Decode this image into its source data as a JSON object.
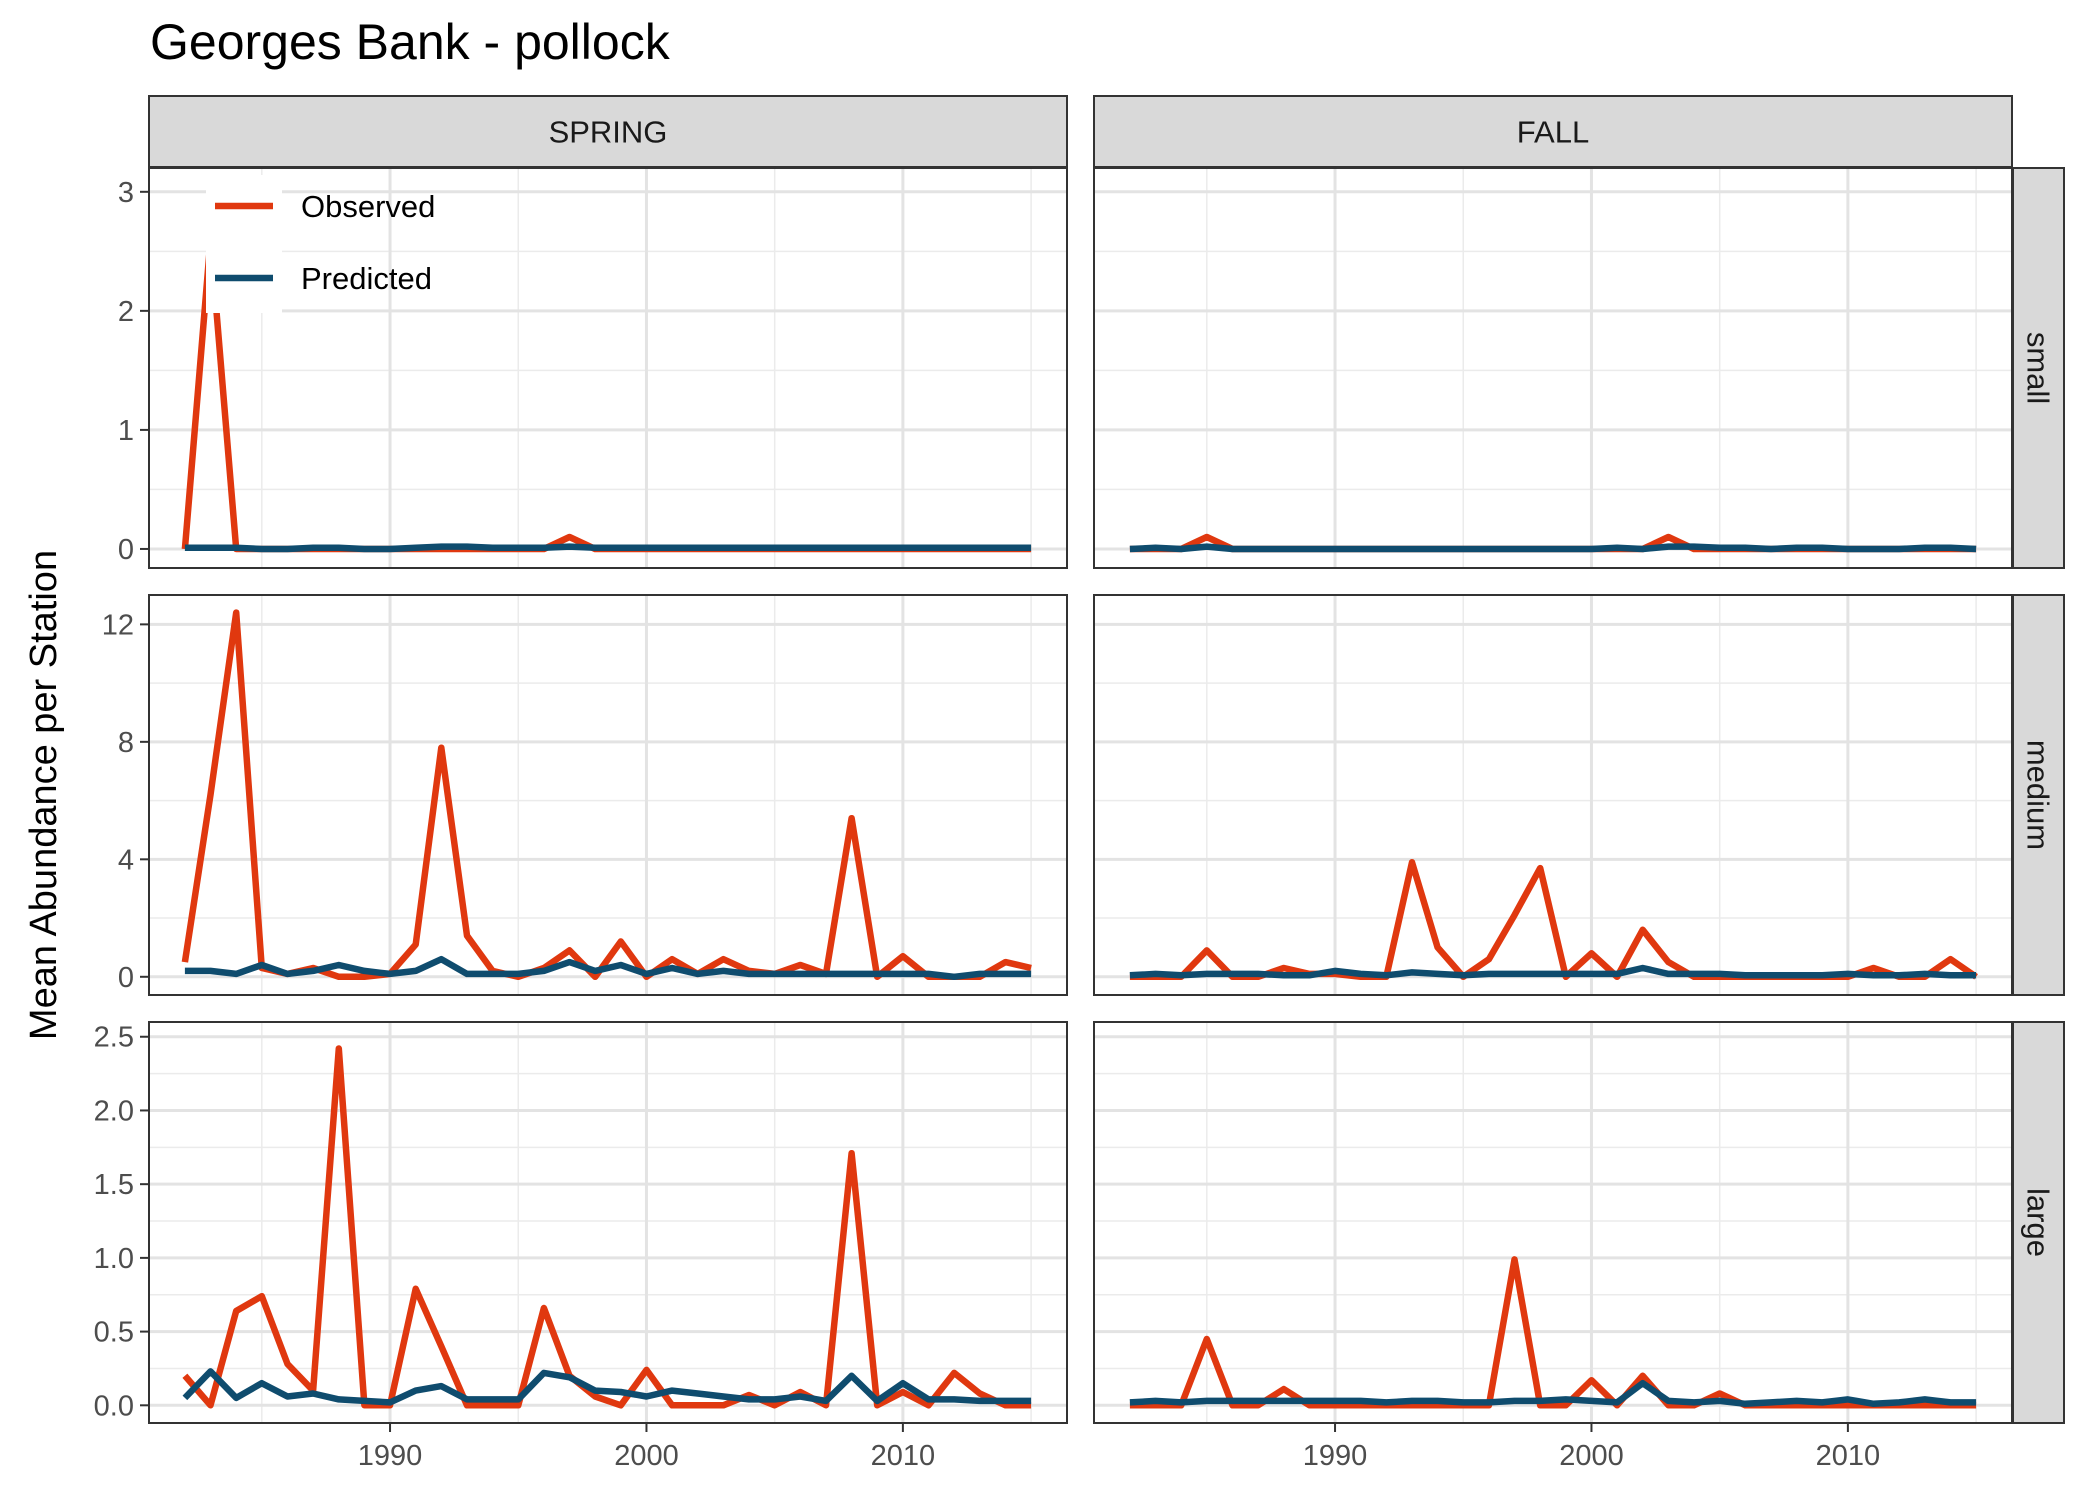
{
  "chart_data": {
    "type": "line",
    "title": "Georges Bank - pollock",
    "ylabel": "Mean Abundance per Station",
    "xlabel": "",
    "grid": true,
    "legend_position": "top-left inside first panel",
    "colors": {
      "Observed": "#e0380f",
      "Predicted": "#0f4c6e"
    },
    "columns": [
      "SPRING",
      "FALL"
    ],
    "rows": [
      "small",
      "medium",
      "large"
    ],
    "xlim": [
      1980.6,
      2016.4
    ],
    "x_ticks": [
      1990,
      2000,
      2010
    ],
    "x_tick_labels": [
      "1990",
      "2000",
      "2010"
    ],
    "x": [
      1982,
      1983,
      1984,
      1985,
      1986,
      1987,
      1988,
      1989,
      1990,
      1991,
      1992,
      1993,
      1994,
      1995,
      1996,
      1997,
      1998,
      1999,
      2000,
      2001,
      2002,
      2003,
      2004,
      2005,
      2006,
      2007,
      2008,
      2009,
      2010,
      2011,
      2012,
      2013,
      2014,
      2015
    ],
    "row_axes": {
      "small": {
        "ylim": [
          -0.16,
          3.2
        ],
        "ticks": [
          0,
          1,
          2,
          3
        ],
        "tick_labels": [
          "0",
          "1",
          "2",
          "3"
        ]
      },
      "medium": {
        "ylim": [
          -0.62,
          13.0
        ],
        "ticks": [
          0,
          4,
          8,
          12
        ],
        "tick_labels": [
          "0",
          "4",
          "8",
          "12"
        ]
      },
      "large": {
        "ylim": [
          -0.12,
          2.6
        ],
        "ticks": [
          0,
          0.5,
          1.0,
          1.5,
          2.0,
          2.5
        ],
        "tick_labels": [
          "0.0",
          "0.5",
          "1.0",
          "1.5",
          "2.0",
          "2.5"
        ]
      }
    },
    "panels": [
      {
        "column": "SPRING",
        "row": "small",
        "series": [
          {
            "name": "Observed",
            "values": [
              0,
              2.6,
              0,
              0,
              0,
              0,
              0,
              0,
              0,
              0,
              0,
              0,
              0,
              0,
              0,
              0.1,
              0,
              0,
              0,
              0,
              0,
              0,
              0,
              0,
              0,
              0,
              0,
              0,
              0,
              0,
              0,
              0,
              0,
              0
            ]
          },
          {
            "name": "Predicted",
            "values": [
              0.01,
              0.01,
              0.01,
              0,
              0,
              0.01,
              0.01,
              0,
              0,
              0.01,
              0.02,
              0.02,
              0.01,
              0.01,
              0.01,
              0.02,
              0.01,
              0.01,
              0.01,
              0.01,
              0.01,
              0.01,
              0.01,
              0.01,
              0.01,
              0.01,
              0.01,
              0.01,
              0.01,
              0.01,
              0.01,
              0.01,
              0.01,
              0.01
            ]
          }
        ]
      },
      {
        "column": "FALL",
        "row": "small",
        "series": [
          {
            "name": "Observed",
            "values": [
              0,
              0,
              0,
              0.1,
              0,
              0,
              0,
              0,
              0,
              0,
              0,
              0,
              0,
              0,
              0,
              0,
              0,
              0,
              0,
              0,
              0,
              0.1,
              0,
              0,
              0,
              0,
              0,
              0,
              0,
              0,
              0,
              0,
              0,
              0
            ]
          },
          {
            "name": "Predicted",
            "values": [
              0,
              0.01,
              0,
              0.02,
              0,
              0,
              0,
              0,
              0,
              0,
              0,
              0,
              0,
              0,
              0,
              0,
              0,
              0,
              0,
              0.01,
              0,
              0.02,
              0.02,
              0.01,
              0.01,
              0,
              0.01,
              0.01,
              0,
              0,
              0,
              0.01,
              0.01,
              0
            ]
          }
        ]
      },
      {
        "column": "SPRING",
        "row": "medium",
        "series": [
          {
            "name": "Observed",
            "values": [
              0.5,
              6.2,
              12.4,
              0.3,
              0.1,
              0.3,
              0,
              0,
              0.1,
              1.1,
              7.8,
              1.4,
              0.2,
              0,
              0.3,
              0.9,
              0,
              1.2,
              0,
              0.6,
              0.1,
              0.6,
              0.2,
              0.1,
              0.4,
              0.1,
              5.4,
              0,
              0.7,
              0,
              0,
              0,
              0.5,
              0.3
            ]
          },
          {
            "name": "Predicted",
            "values": [
              0.2,
              0.2,
              0.1,
              0.4,
              0.1,
              0.2,
              0.4,
              0.2,
              0.1,
              0.2,
              0.6,
              0.1,
              0.1,
              0.1,
              0.2,
              0.5,
              0.2,
              0.4,
              0.1,
              0.3,
              0.1,
              0.2,
              0.1,
              0.1,
              0.1,
              0.1,
              0.1,
              0.1,
              0.1,
              0.1,
              0,
              0.1,
              0.1,
              0.1
            ]
          }
        ]
      },
      {
        "column": "FALL",
        "row": "medium",
        "series": [
          {
            "name": "Observed",
            "values": [
              0,
              0,
              0,
              0.9,
              0,
              0,
              0.3,
              0.1,
              0.1,
              0,
              0,
              3.9,
              1,
              0,
              0.6,
              2.1,
              3.7,
              0,
              0.8,
              0,
              1.6,
              0.5,
              0,
              0,
              0,
              0,
              0,
              0,
              0,
              0.3,
              0,
              0,
              0.6,
              0
            ]
          },
          {
            "name": "Predicted",
            "values": [
              0.05,
              0.1,
              0.05,
              0.1,
              0.1,
              0.1,
              0.05,
              0.05,
              0.2,
              0.1,
              0.05,
              0.15,
              0.1,
              0.05,
              0.1,
              0.1,
              0.1,
              0.1,
              0.1,
              0.1,
              0.3,
              0.1,
              0.1,
              0.1,
              0.05,
              0.05,
              0.05,
              0.05,
              0.1,
              0.05,
              0.05,
              0.1,
              0.05,
              0.05
            ]
          }
        ]
      },
      {
        "column": "SPRING",
        "row": "large",
        "series": [
          {
            "name": "Observed",
            "values": [
              0.2,
              0,
              0.64,
              0.74,
              0.28,
              0.1,
              2.42,
              0,
              0,
              0.79,
              0.4,
              0,
              0,
              0,
              0.66,
              0.2,
              0.06,
              0,
              0.24,
              0,
              0,
              0,
              0.07,
              0,
              0.09,
              0,
              1.71,
              0,
              0.09,
              0,
              0.22,
              0.08,
              0,
              0
            ]
          },
          {
            "name": "Predicted",
            "values": [
              0.05,
              0.23,
              0.05,
              0.15,
              0.06,
              0.08,
              0.04,
              0.03,
              0.02,
              0.1,
              0.13,
              0.04,
              0.04,
              0.04,
              0.22,
              0.19,
              0.1,
              0.09,
              0.06,
              0.1,
              0.08,
              0.06,
              0.04,
              0.04,
              0.06,
              0.03,
              0.2,
              0.03,
              0.15,
              0.04,
              0.04,
              0.03,
              0.03,
              0.03
            ]
          }
        ]
      },
      {
        "column": "FALL",
        "row": "large",
        "series": [
          {
            "name": "Observed",
            "values": [
              0,
              0,
              0,
              0.45,
              0,
              0,
              0.11,
              0,
              0,
              0,
              0,
              0,
              0,
              0,
              0,
              0.99,
              0,
              0,
              0.17,
              0,
              0.2,
              0,
              0,
              0.08,
              0,
              0,
              0,
              0,
              0,
              0,
              0,
              0,
              0,
              0
            ]
          },
          {
            "name": "Predicted",
            "values": [
              0.02,
              0.03,
              0.02,
              0.03,
              0.03,
              0.03,
              0.03,
              0.03,
              0.03,
              0.03,
              0.02,
              0.03,
              0.03,
              0.02,
              0.02,
              0.03,
              0.03,
              0.04,
              0.03,
              0.02,
              0.15,
              0.03,
              0.02,
              0.03,
              0.01,
              0.02,
              0.03,
              0.02,
              0.04,
              0.01,
              0.02,
              0.04,
              0.02,
              0.02
            ]
          }
        ]
      }
    ]
  }
}
